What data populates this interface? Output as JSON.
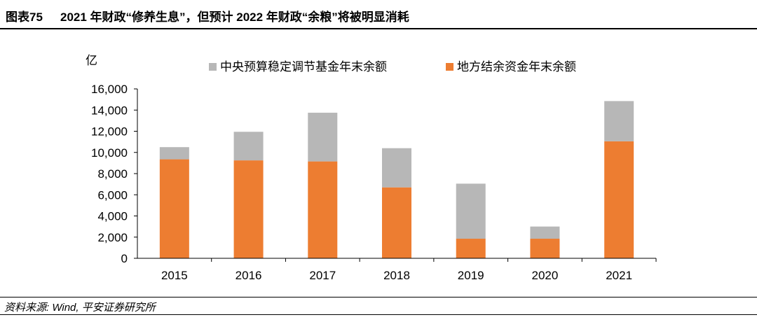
{
  "header": {
    "figure_label": "图表75",
    "title": "2021 年财政“修养生息”，但预计 2022 年财政“余粮”将被明显消耗"
  },
  "chart_data": {
    "type": "bar",
    "stacked": true,
    "unit_label": "亿",
    "categories": [
      "2015",
      "2016",
      "2017",
      "2018",
      "2019",
      "2020",
      "2021"
    ],
    "series": [
      {
        "name": "地方结余资金年末余额",
        "color": "#ED7D31",
        "values": [
          9350,
          9250,
          9150,
          6700,
          1850,
          1850,
          11050
        ]
      },
      {
        "name": "中央预算稳定调节基金年末余额",
        "color": "#B7B7B7",
        "values": [
          1150,
          2700,
          4600,
          3700,
          5200,
          1150,
          3800
        ]
      }
    ],
    "legend_order": [
      "中央预算稳定调节基金年末余额",
      "地方结余资金年末余额"
    ],
    "ylim": [
      0,
      16000
    ],
    "yticks": [
      "0",
      "2,000",
      "4,000",
      "6,000",
      "8,000",
      "10,000",
      "12,000",
      "14,000",
      "16,000"
    ],
    "grid": false,
    "legend_position": "top"
  },
  "footer": {
    "source": "资料来源: Wind, 平安证券研究所"
  }
}
